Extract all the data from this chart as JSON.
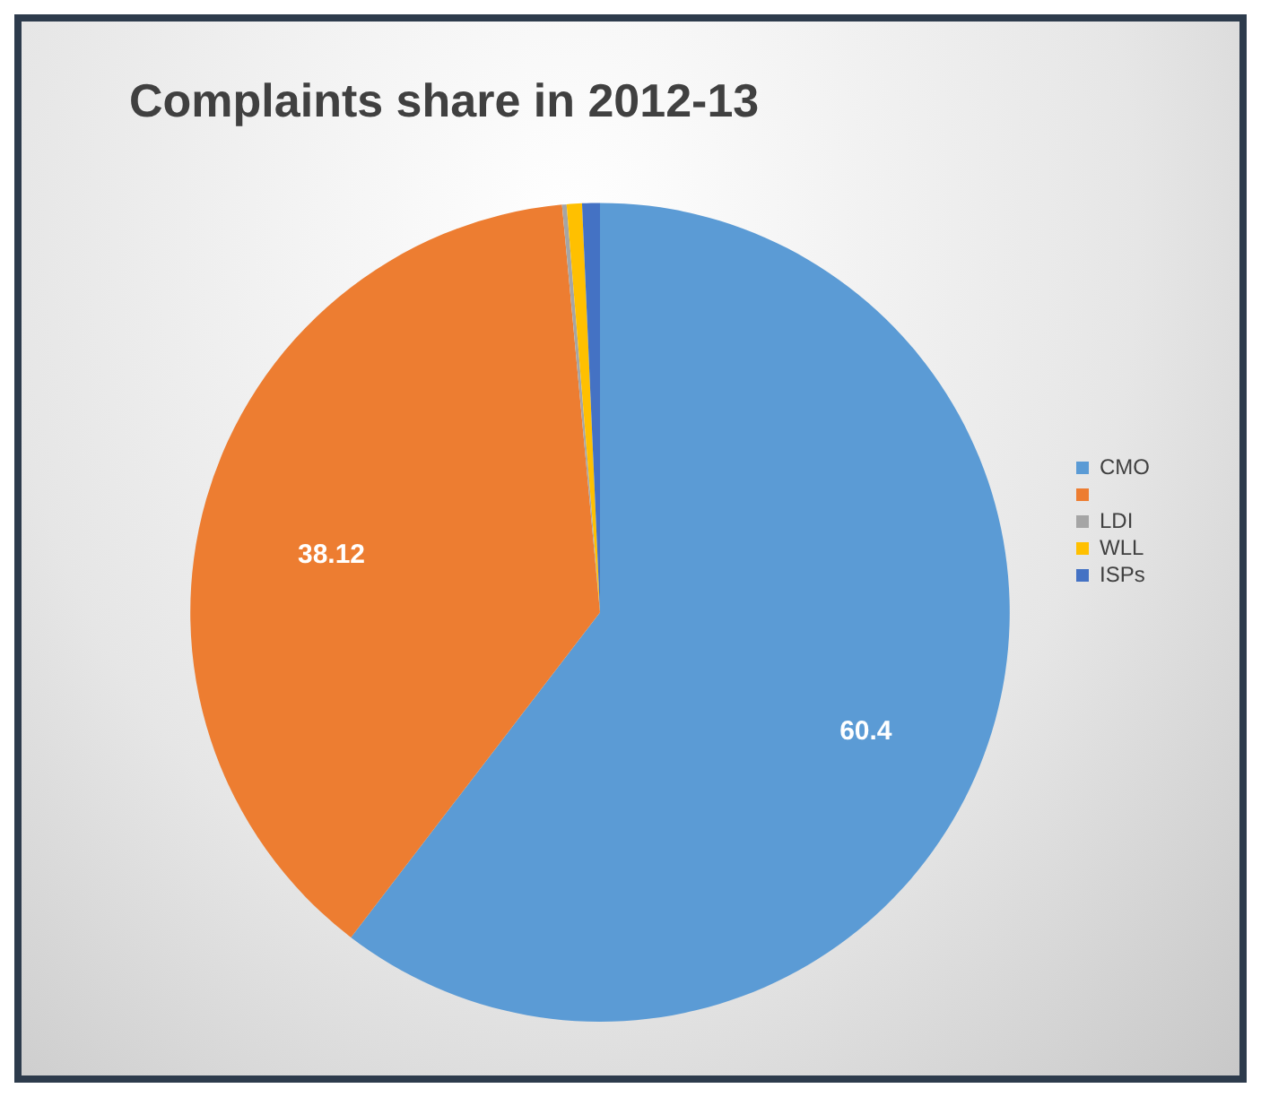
{
  "chart_data": {
    "type": "pie",
    "title": "Complaints share in 2012-13",
    "categories": [
      "CMO",
      null,
      "LDI",
      "WLL",
      "ISPs"
    ],
    "values": [
      60.4,
      38.12,
      0.18,
      0.6,
      0.7
    ],
    "colors": [
      "#5b9bd5",
      "#ed7d31",
      "#a5a5a5",
      "#ffc000",
      "#4472c4"
    ],
    "value_labels": [
      "60.4",
      "38.12",
      null,
      null,
      null
    ],
    "legend": "right"
  }
}
